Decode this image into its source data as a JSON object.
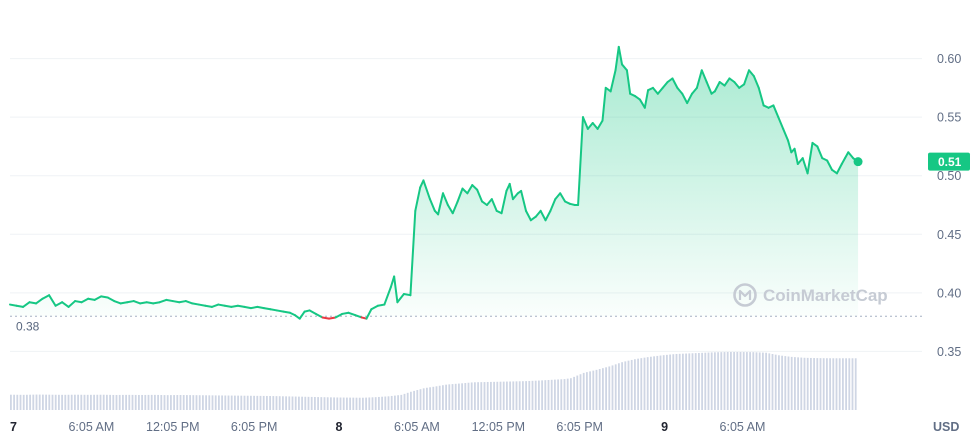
{
  "chart_data": {
    "type": "area",
    "y_axis": {
      "ticks": [
        0.35,
        0.4,
        0.45,
        0.5,
        0.55,
        0.6
      ],
      "tick_labels": [
        "0.35",
        "0.40",
        "0.45",
        "0.50",
        "0.55",
        "0.60"
      ],
      "position": "right",
      "unit": "USD",
      "ylim": [
        0.3,
        0.65
      ]
    },
    "x_axis": {
      "xlim": [
        0,
        2.74
      ],
      "tick_values": [
        0,
        0.25,
        0.5,
        0.75,
        1,
        1.25,
        1.5,
        1.75,
        2,
        2.25
      ],
      "tick_labels": [
        "7",
        "6:05 AM",
        "12:05 PM",
        "6:05 PM",
        "8",
        "6:05 AM",
        "12:05 PM",
        "6:05 PM",
        "9",
        "6:05 AM"
      ],
      "day_ticks": [
        "7",
        "8",
        "9"
      ]
    },
    "baseline": {
      "value": 0.38,
      "label": "0.38"
    },
    "current_value": {
      "value": 0.513,
      "label": "0.51"
    },
    "colors": {
      "up": "#16c784",
      "down": "#ea3943",
      "volume": "#cfd6e4",
      "badge": "#16c784"
    },
    "grid": true,
    "watermark": "CoinMarketCap",
    "price_series": [
      [
        0.0,
        0.39
      ],
      [
        0.02,
        0.389
      ],
      [
        0.04,
        0.388
      ],
      [
        0.06,
        0.392
      ],
      [
        0.08,
        0.391
      ],
      [
        0.1,
        0.395
      ],
      [
        0.12,
        0.398
      ],
      [
        0.14,
        0.389
      ],
      [
        0.16,
        0.392
      ],
      [
        0.18,
        0.388
      ],
      [
        0.2,
        0.393
      ],
      [
        0.22,
        0.392
      ],
      [
        0.24,
        0.395
      ],
      [
        0.26,
        0.394
      ],
      [
        0.28,
        0.397
      ],
      [
        0.3,
        0.396
      ],
      [
        0.32,
        0.393
      ],
      [
        0.34,
        0.391
      ],
      [
        0.36,
        0.392
      ],
      [
        0.38,
        0.393
      ],
      [
        0.4,
        0.391
      ],
      [
        0.42,
        0.392
      ],
      [
        0.44,
        0.391
      ],
      [
        0.46,
        0.392
      ],
      [
        0.48,
        0.394
      ],
      [
        0.5,
        0.393
      ],
      [
        0.52,
        0.392
      ],
      [
        0.54,
        0.393
      ],
      [
        0.56,
        0.391
      ],
      [
        0.58,
        0.39
      ],
      [
        0.6,
        0.389
      ],
      [
        0.62,
        0.388
      ],
      [
        0.64,
        0.39
      ],
      [
        0.66,
        0.389
      ],
      [
        0.68,
        0.388
      ],
      [
        0.7,
        0.389
      ],
      [
        0.72,
        0.388
      ],
      [
        0.74,
        0.387
      ],
      [
        0.76,
        0.388
      ],
      [
        0.78,
        0.387
      ],
      [
        0.8,
        0.386
      ],
      [
        0.82,
        0.385
      ],
      [
        0.84,
        0.384
      ],
      [
        0.86,
        0.383
      ],
      [
        0.875,
        0.381
      ],
      [
        0.89,
        0.378
      ],
      [
        0.905,
        0.384
      ],
      [
        0.92,
        0.385
      ],
      [
        0.94,
        0.382
      ],
      [
        0.96,
        0.379
      ],
      [
        0.98,
        0.378
      ],
      [
        1.0,
        0.379
      ],
      [
        1.02,
        0.382
      ],
      [
        1.04,
        0.383
      ],
      [
        1.06,
        0.381
      ],
      [
        1.08,
        0.379
      ],
      [
        1.095,
        0.378
      ],
      [
        1.11,
        0.386
      ],
      [
        1.13,
        0.389
      ],
      [
        1.15,
        0.39
      ],
      [
        1.17,
        0.405
      ],
      [
        1.18,
        0.414
      ],
      [
        1.19,
        0.392
      ],
      [
        1.21,
        0.399
      ],
      [
        1.23,
        0.398
      ],
      [
        1.245,
        0.47
      ],
      [
        1.26,
        0.49
      ],
      [
        1.27,
        0.496
      ],
      [
        1.29,
        0.48
      ],
      [
        1.305,
        0.47
      ],
      [
        1.315,
        0.467
      ],
      [
        1.33,
        0.485
      ],
      [
        1.345,
        0.475
      ],
      [
        1.36,
        0.468
      ],
      [
        1.375,
        0.478
      ],
      [
        1.39,
        0.489
      ],
      [
        1.405,
        0.485
      ],
      [
        1.42,
        0.492
      ],
      [
        1.435,
        0.488
      ],
      [
        1.45,
        0.478
      ],
      [
        1.465,
        0.475
      ],
      [
        1.48,
        0.48
      ],
      [
        1.495,
        0.47
      ],
      [
        1.51,
        0.468
      ],
      [
        1.525,
        0.487
      ],
      [
        1.535,
        0.493
      ],
      [
        1.545,
        0.48
      ],
      [
        1.56,
        0.485
      ],
      [
        1.57,
        0.487
      ],
      [
        1.585,
        0.47
      ],
      [
        1.6,
        0.462
      ],
      [
        1.615,
        0.465
      ],
      [
        1.63,
        0.47
      ],
      [
        1.645,
        0.462
      ],
      [
        1.66,
        0.47
      ],
      [
        1.675,
        0.48
      ],
      [
        1.69,
        0.485
      ],
      [
        1.705,
        0.478
      ],
      [
        1.72,
        0.476
      ],
      [
        1.735,
        0.475
      ],
      [
        1.745,
        0.475
      ],
      [
        1.76,
        0.55
      ],
      [
        1.775,
        0.54
      ],
      [
        1.79,
        0.545
      ],
      [
        1.805,
        0.54
      ],
      [
        1.82,
        0.547
      ],
      [
        1.83,
        0.575
      ],
      [
        1.845,
        0.572
      ],
      [
        1.86,
        0.59
      ],
      [
        1.87,
        0.61
      ],
      [
        1.88,
        0.595
      ],
      [
        1.895,
        0.59
      ],
      [
        1.905,
        0.57
      ],
      [
        1.92,
        0.568
      ],
      [
        1.935,
        0.565
      ],
      [
        1.95,
        0.558
      ],
      [
        1.96,
        0.573
      ],
      [
        1.975,
        0.575
      ],
      [
        1.99,
        0.57
      ],
      [
        2.005,
        0.575
      ],
      [
        2.02,
        0.58
      ],
      [
        2.035,
        0.583
      ],
      [
        2.05,
        0.575
      ],
      [
        2.065,
        0.57
      ],
      [
        2.08,
        0.562
      ],
      [
        2.095,
        0.57
      ],
      [
        2.11,
        0.575
      ],
      [
        2.125,
        0.59
      ],
      [
        2.14,
        0.58
      ],
      [
        2.155,
        0.57
      ],
      [
        2.165,
        0.572
      ],
      [
        2.18,
        0.58
      ],
      [
        2.195,
        0.577
      ],
      [
        2.21,
        0.583
      ],
      [
        2.225,
        0.58
      ],
      [
        2.24,
        0.575
      ],
      [
        2.255,
        0.578
      ],
      [
        2.27,
        0.59
      ],
      [
        2.285,
        0.585
      ],
      [
        2.3,
        0.575
      ],
      [
        2.315,
        0.56
      ],
      [
        2.33,
        0.558
      ],
      [
        2.345,
        0.56
      ],
      [
        2.36,
        0.55
      ],
      [
        2.375,
        0.54
      ],
      [
        2.39,
        0.53
      ],
      [
        2.4,
        0.52
      ],
      [
        2.41,
        0.523
      ],
      [
        2.42,
        0.51
      ],
      [
        2.435,
        0.515
      ],
      [
        2.45,
        0.502
      ],
      [
        2.465,
        0.528
      ],
      [
        2.48,
        0.525
      ],
      [
        2.495,
        0.515
      ],
      [
        2.51,
        0.513
      ],
      [
        2.525,
        0.505
      ],
      [
        2.54,
        0.502
      ],
      [
        2.555,
        0.51
      ],
      [
        2.565,
        0.515
      ],
      [
        2.575,
        0.52
      ],
      [
        2.59,
        0.515
      ],
      [
        2.605,
        0.512
      ]
    ],
    "volume_series": [
      [
        0.0,
        0.105
      ],
      [
        0.04,
        0.104
      ],
      [
        0.08,
        0.106
      ],
      [
        0.12,
        0.105
      ],
      [
        0.16,
        0.104
      ],
      [
        0.2,
        0.105
      ],
      [
        0.24,
        0.104
      ],
      [
        0.28,
        0.105
      ],
      [
        0.32,
        0.103
      ],
      [
        0.36,
        0.104
      ],
      [
        0.4,
        0.103
      ],
      [
        0.44,
        0.104
      ],
      [
        0.48,
        0.102
      ],
      [
        0.52,
        0.103
      ],
      [
        0.56,
        0.102
      ],
      [
        0.6,
        0.101
      ],
      [
        0.64,
        0.1
      ],
      [
        0.68,
        0.099
      ],
      [
        0.72,
        0.098
      ],
      [
        0.76,
        0.097
      ],
      [
        0.8,
        0.096
      ],
      [
        0.84,
        0.094
      ],
      [
        0.88,
        0.092
      ],
      [
        0.92,
        0.09
      ],
      [
        0.96,
        0.088
      ],
      [
        1.0,
        0.086
      ],
      [
        1.04,
        0.085
      ],
      [
        1.08,
        0.084
      ],
      [
        1.12,
        0.088
      ],
      [
        1.16,
        0.094
      ],
      [
        1.2,
        0.104
      ],
      [
        1.23,
        0.126
      ],
      [
        1.27,
        0.15
      ],
      [
        1.3,
        0.16
      ],
      [
        1.34,
        0.175
      ],
      [
        1.38,
        0.182
      ],
      [
        1.42,
        0.19
      ],
      [
        1.46,
        0.192
      ],
      [
        1.5,
        0.194
      ],
      [
        1.54,
        0.196
      ],
      [
        1.58,
        0.198
      ],
      [
        1.62,
        0.202
      ],
      [
        1.66,
        0.207
      ],
      [
        1.7,
        0.212
      ],
      [
        1.72,
        0.218
      ],
      [
        1.76,
        0.255
      ],
      [
        1.8,
        0.276
      ],
      [
        1.84,
        0.3
      ],
      [
        1.88,
        0.33
      ],
      [
        1.92,
        0.35
      ],
      [
        1.96,
        0.364
      ],
      [
        2.0,
        0.375
      ],
      [
        2.04,
        0.384
      ],
      [
        2.08,
        0.388
      ],
      [
        2.12,
        0.392
      ],
      [
        2.16,
        0.396
      ],
      [
        2.2,
        0.398
      ],
      [
        2.24,
        0.398
      ],
      [
        2.28,
        0.397
      ],
      [
        2.32,
        0.393
      ],
      [
        2.36,
        0.375
      ],
      [
        2.4,
        0.364
      ],
      [
        2.44,
        0.358
      ],
      [
        2.48,
        0.356
      ],
      [
        2.52,
        0.355
      ],
      [
        2.56,
        0.355
      ],
      [
        2.6,
        0.355
      ]
    ]
  }
}
